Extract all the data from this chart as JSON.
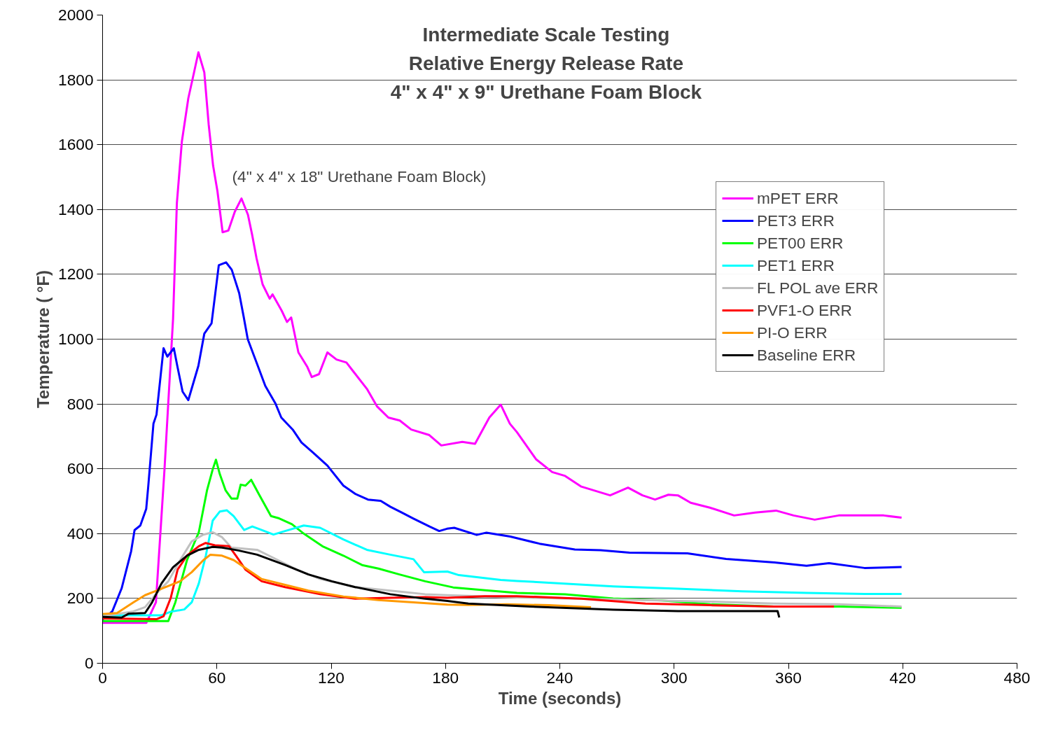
{
  "chart_data": {
    "type": "line",
    "title": "Intermediate Scale Testing\nRelative Energy Release Rate\n4\" x 4\" x 9\" Urethane Foam Block",
    "xlabel": "Time (seconds)",
    "ylabel": "Temperature ( °F)",
    "annotations": [
      "(4\" x 4\" x 18\" Urethane Foam Block)"
    ],
    "xlim": [
      0,
      480
    ],
    "xticks": [
      0,
      60,
      120,
      180,
      240,
      300,
      360,
      420,
      480
    ],
    "ylim": [
      0,
      2000
    ],
    "yticks": [
      0,
      200,
      400,
      600,
      800,
      1000,
      1200,
      1400,
      1600,
      1800,
      2000
    ],
    "grid": "y",
    "legend": "right",
    "line_style": "solid",
    "series": [
      {
        "name": "mPET ERR",
        "color": "#ff00ff",
        "x": [
          0,
          23,
          28,
          32.5,
          37,
          39,
          41.6,
          45,
          48,
          50.3,
          53.4,
          55.7,
          58,
          60.3,
          63,
          66,
          69.4,
          72.9,
          76.3,
          78.5,
          80.8,
          84,
          87.7,
          89.2,
          94,
          96.8,
          99,
          102.8,
          107.5,
          109.8,
          113.6,
          118,
          122.8,
          128,
          131,
          138.7,
          144,
          150,
          156,
          162,
          171.5,
          177.8,
          188.8,
          195.5,
          203,
          209,
          213.8,
          217.5,
          227.6,
          236,
          242.8,
          251.3,
          266.4,
          275.8,
          283.4,
          290,
          297,
          302,
          308.7,
          318.8,
          331.5,
          342.5,
          353.5,
          362.7,
          373.8,
          386.4,
          398,
          410,
          419.4
        ],
        "values": [
          125,
          125,
          188,
          598,
          1063,
          1420,
          1609,
          1743,
          1823,
          1885,
          1823,
          1662,
          1536,
          1456,
          1330,
          1335,
          1393,
          1434,
          1384,
          1322,
          1250,
          1169,
          1125,
          1138,
          1088,
          1053,
          1067,
          959,
          914,
          883,
          892,
          959,
          937,
          928,
          905,
          847,
          793,
          758,
          749,
          721,
          704,
          672,
          683,
          677,
          758,
          798,
          739,
          713,
          629,
          590,
          578,
          545,
          518,
          542,
          518,
          505,
          520,
          518,
          495,
          480,
          456,
          465,
          471,
          456,
          443,
          456,
          456,
          456,
          449
        ]
      },
      {
        "name": "PET3 ERR",
        "color": "#0000ff",
        "x": [
          0,
          5.1,
          10,
          15,
          16.8,
          19.8,
          22.9,
          24,
          26.7,
          28.3,
          32,
          34,
          37.4,
          39.2,
          42,
          45,
          50.3,
          53.4,
          57.2,
          61,
          64.8,
          67.8,
          71.7,
          74,
          76.2,
          80.8,
          85.4,
          90.7,
          93.8,
          99.8,
          104.4,
          110.5,
          118,
          126.4,
          132.5,
          139.3,
          146,
          151,
          157,
          163,
          171.6,
          176.7,
          180.8,
          184.6,
          196.4,
          201.5,
          214,
          229.3,
          247.9,
          261.4,
          276.6,
          307,
          327.3,
          352.7,
          369.5,
          381.3,
          399.9,
          419.4
        ],
        "values": [
          135,
          160,
          231,
          346,
          411,
          425,
          476,
          548,
          739,
          767,
          972,
          946,
          972,
          918,
          838,
          812,
          918,
          1017,
          1049,
          1228,
          1237,
          1214,
          1142,
          1071,
          1000,
          928,
          856,
          802,
          758,
          721,
          681,
          650,
          610,
          548,
          523,
          505,
          501,
          483,
          465,
          447,
          422,
          408,
          415,
          418,
          396,
          403,
          391,
          369,
          351,
          349,
          341,
          339,
          322,
          311,
          301,
          309,
          294,
          297
        ]
      },
      {
        "name": "PET00 ERR",
        "color": "#00ff00",
        "x": [
          0,
          34.5,
          38.2,
          44.3,
          50.5,
          54.8,
          57.8,
          59.5,
          61.5,
          64.6,
          67.7,
          70.7,
          72.5,
          75,
          78,
          82.3,
          88.4,
          92.7,
          99.4,
          105.6,
          115.4,
          126.4,
          136.2,
          144.8,
          155.8,
          169.3,
          184,
          200.9,
          217.5,
          242.8,
          268,
          293.5,
          318.8,
          352.6,
          386.4,
          419.4
        ],
        "values": [
          130,
          130,
          188,
          318,
          404,
          533,
          598,
          628,
          584,
          533,
          508,
          508,
          551,
          548,
          566,
          519,
          454,
          447,
          429,
          400,
          361,
          332,
          303,
          292,
          274,
          253,
          234,
          225,
          217,
          213,
          200,
          194,
          182,
          175,
          175,
          171
        ]
      },
      {
        "name": "PET1 ERR",
        "color": "#00ffff",
        "x": [
          0,
          31,
          35.8,
          42.9,
          46.8,
          50.5,
          54.2,
          57.8,
          61.5,
          65.2,
          68.8,
          74.3,
          78.6,
          83.5,
          89.7,
          95.8,
          105.6,
          114.2,
          126.4,
          138.7,
          151,
          163.2,
          168.7,
          181,
          187,
          209,
          217.5,
          268.2,
          302,
          335.7,
          369.5,
          399.9,
          419.4
        ],
        "values": [
          148,
          148,
          159,
          166,
          188,
          246,
          332,
          440,
          468,
          472,
          454,
          411,
          422,
          411,
          397,
          408,
          425,
          418,
          382,
          350,
          335,
          321,
          281,
          283,
          272,
          257,
          254,
          237,
          230,
          222,
          217,
          214,
          214
        ]
      },
      {
        "name": "FL POL ave ERR",
        "color": "#c0c0c0",
        "x": [
          0,
          16.2,
          22.3,
          28.4,
          34.5,
          40.7,
          46.8,
          52.9,
          57.8,
          62.7,
          67.6,
          81.1,
          89.7,
          101.9,
          114.2,
          132.6,
          151,
          169.3,
          181,
          217.5,
          268,
          318.8,
          352.6,
          386.4,
          419.4
        ],
        "values": [
          145,
          160,
          173,
          216,
          253,
          318,
          376,
          397,
          404,
          389,
          357,
          350,
          325,
          289,
          260,
          235,
          224,
          213,
          210,
          203,
          197,
          190,
          184,
          182,
          175
        ]
      },
      {
        "name": "PVF1-O ERR",
        "color": "#ff0000",
        "x": [
          0,
          28.3,
          32,
          35.8,
          39.4,
          44.3,
          50.5,
          54.1,
          59,
          66.4,
          70,
          75,
          83.5,
          95.8,
          114.2,
          132.6,
          151,
          169.3,
          181,
          200.6,
          217.5,
          251.3,
          285,
          318.8,
          352.6,
          383.9
        ],
        "values": [
          138,
          136,
          145,
          202,
          289,
          332,
          361,
          371,
          364,
          361,
          332,
          289,
          253,
          235,
          213,
          199,
          202,
          204,
          202,
          207,
          207,
          199,
          184,
          179,
          175,
          175
        ]
      },
      {
        "name": "PI-O ERR",
        "color": "#ff9900",
        "x": [
          0,
          7.6,
          16.2,
          22.3,
          29.7,
          40.7,
          46.8,
          52.9,
          56.6,
          62.7,
          68.9,
          76.2,
          83.5,
          95.8,
          108,
          126.4,
          144.8,
          163.2,
          181,
          192,
          212.4,
          234.4,
          256.4
        ],
        "values": [
          152,
          155,
          188,
          210,
          227,
          253,
          281,
          318,
          335,
          332,
          318,
          289,
          260,
          242,
          224,
          206,
          195,
          188,
          181,
          180,
          182,
          179,
          173
        ]
      },
      {
        "name": "Baseline ERR",
        "color": "#000000",
        "x": [
          0,
          10,
          13.7,
          22.3,
          26,
          30.9,
          37,
          44.3,
          50.5,
          57.8,
          62.7,
          71.3,
          81.1,
          95.8,
          108,
          120.3,
          132.6,
          151,
          169.3,
          181,
          192,
          224.3,
          268.2,
          302,
          354.3,
          355.2
        ],
        "values": [
          143,
          141,
          153,
          155,
          188,
          246,
          296,
          332,
          350,
          359,
          357,
          348,
          335,
          303,
          274,
          253,
          235,
          213,
          199,
          192,
          184,
          175,
          165,
          161,
          161,
          141
        ]
      }
    ]
  }
}
